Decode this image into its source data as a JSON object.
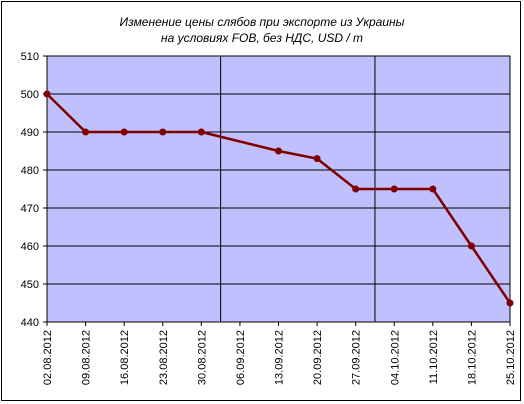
{
  "chart_data": {
    "type": "line",
    "title_line1": "Изменение цены слябов при экспорте из Украины",
    "title_line2": "на условиях FOB, без НДС, USD / т",
    "categories": [
      "02.08.2012",
      "09.08.2012",
      "16.08.2012",
      "23.08.2012",
      "30.08.2012",
      "06.09.2012",
      "13.09.2012",
      "20.09.2012",
      "27.09.2012",
      "04.10.2012",
      "11.10.2012",
      "18.10.2012",
      "25.10.2012"
    ],
    "series": [
      {
        "values": [
          500,
          490,
          490,
          490,
          490,
          null,
          485,
          483,
          475,
          475,
          475,
          460,
          445
        ]
      }
    ],
    "ylim": [
      440,
      510
    ],
    "yticks": [
      440,
      450,
      460,
      470,
      480,
      490,
      500,
      510
    ],
    "grid": "horizontal lines + month separators",
    "colors": {
      "plot_bg": "#c0c0ff",
      "line": "#800000",
      "grid": "#000000"
    }
  }
}
